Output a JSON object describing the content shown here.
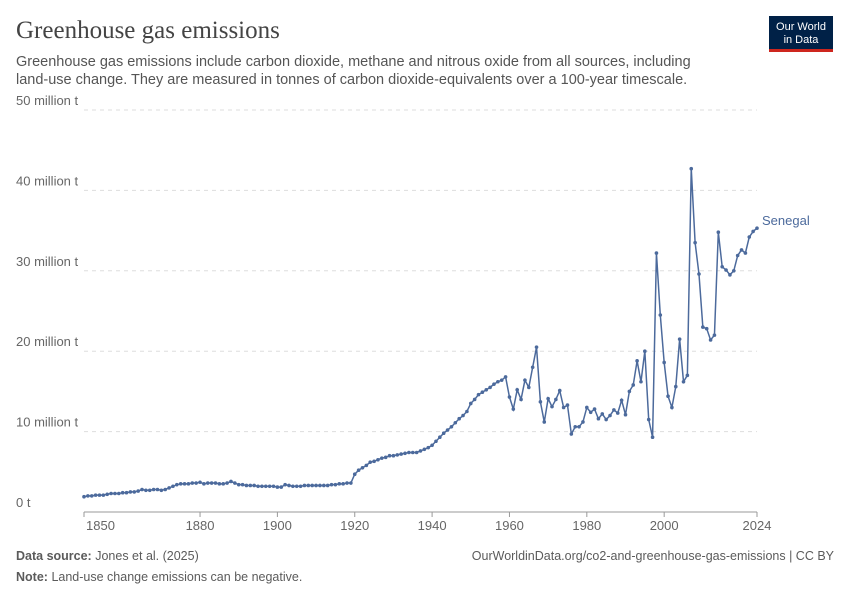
{
  "chart_data": {
    "type": "line",
    "title": "Greenhouse gas emissions",
    "subtitle_lines": [
      "Greenhouse gas emissions include carbon dioxide, methane and nitrous oxide from all sources, including",
      "land-use change. They are measured in tonnes of carbon dioxide-equivalents over a 100-year timescale."
    ],
    "logo": [
      "Our World",
      "in Data"
    ],
    "source_label": "Data source:",
    "source": "Jones et al. (2025)",
    "url": "OurWorldinData.org/co2-and-greenhouse-gas-emissions | CC BY",
    "note_label": "Note:",
    "note": "Land-use change emissions can be negative.",
    "x": [
      1850,
      1851,
      1852,
      1853,
      1854,
      1855,
      1856,
      1857,
      1858,
      1859,
      1860,
      1861,
      1862,
      1863,
      1864,
      1865,
      1866,
      1867,
      1868,
      1869,
      1870,
      1871,
      1872,
      1873,
      1874,
      1875,
      1876,
      1877,
      1878,
      1879,
      1880,
      1881,
      1882,
      1883,
      1884,
      1885,
      1886,
      1887,
      1888,
      1889,
      1890,
      1891,
      1892,
      1893,
      1894,
      1895,
      1896,
      1897,
      1898,
      1899,
      1900,
      1901,
      1902,
      1903,
      1904,
      1905,
      1906,
      1907,
      1908,
      1909,
      1910,
      1911,
      1912,
      1913,
      1914,
      1915,
      1916,
      1917,
      1918,
      1919,
      1920,
      1921,
      1922,
      1923,
      1924,
      1925,
      1926,
      1927,
      1928,
      1929,
      1930,
      1931,
      1932,
      1933,
      1934,
      1935,
      1936,
      1937,
      1938,
      1939,
      1940,
      1941,
      1942,
      1943,
      1944,
      1945,
      1946,
      1947,
      1948,
      1949,
      1950,
      1951,
      1952,
      1953,
      1954,
      1955,
      1956,
      1957,
      1958,
      1959,
      1960,
      1961,
      1962,
      1963,
      1964,
      1965,
      1966,
      1967,
      1968,
      1969,
      1970,
      1971,
      1972,
      1973,
      1974,
      1975,
      1976,
      1977,
      1978,
      1979,
      1980,
      1981,
      1982,
      1983,
      1984,
      1985,
      1986,
      1987,
      1988,
      1989,
      1990,
      1991,
      1992,
      1993,
      1994,
      1995,
      1996,
      1997,
      1998,
      1999,
      2000,
      2001,
      2002,
      2003,
      2004,
      2005,
      2006,
      2007,
      2008,
      2009,
      2010,
      2011,
      2012,
      2013,
      2014,
      2015,
      2016,
      2017,
      2018,
      2019,
      2020,
      2021,
      2022,
      2023,
      2024
    ],
    "series": [
      {
        "name": "Senegal",
        "color": "#4c6a9c",
        "values": [
          1900000.0,
          2000000.0,
          2000000.0,
          2100000.0,
          2100000.0,
          2100000.0,
          2200000.0,
          2300000.0,
          2300000.0,
          2300000.0,
          2400000.0,
          2400000.0,
          2500000.0,
          2500000.0,
          2600000.0,
          2800000.0,
          2700000.0,
          2700000.0,
          2800000.0,
          2800000.0,
          2700000.0,
          2800000.0,
          3000000.0,
          3200000.0,
          3400000.0,
          3500000.0,
          3500000.0,
          3500000.0,
          3600000.0,
          3600000.0,
          3700000.0,
          3500000.0,
          3600000.0,
          3600000.0,
          3600000.0,
          3500000.0,
          3500000.0,
          3600000.0,
          3800000.0,
          3600000.0,
          3400000.0,
          3400000.0,
          3300000.0,
          3300000.0,
          3300000.0,
          3200000.0,
          3200000.0,
          3200000.0,
          3200000.0,
          3200000.0,
          3100000.0,
          3100000.0,
          3400000.0,
          3300000.0,
          3200000.0,
          3200000.0,
          3200000.0,
          3300000.0,
          3300000.0,
          3300000.0,
          3300000.0,
          3300000.0,
          3300000.0,
          3300000.0,
          3400000.0,
          3400000.0,
          3500000.0,
          3500000.0,
          3600000.0,
          3600000.0,
          4700000.0,
          5200000.0,
          5500000.0,
          5800000.0,
          6200000.0,
          6300000.0,
          6500000.0,
          6700000.0,
          6800000.0,
          7000000.0,
          7000000.0,
          7100000.0,
          7200000.0,
          7300000.0,
          7400000.0,
          7400000.0,
          7400000.0,
          7600000.0,
          7800000.0,
          8000000.0,
          8300000.0,
          8800000.0,
          9300000.0,
          9800000.0,
          10200000.0,
          10600000.0,
          11100000.0,
          11600000.0,
          12000000.0,
          12500000.0,
          13500000.0,
          14000000.0,
          14600000.0,
          14900000.0,
          15200000.0,
          15500000.0,
          15900000.0,
          16200000.0,
          16400000.0,
          16800000.0,
          14300000.0,
          12800000.0,
          15200000.0,
          14000000.0,
          16400000.0,
          15500000.0,
          18000000.0,
          20500000.0,
          13700000.0,
          11200000.0,
          14100000.0,
          13100000.0,
          14000000.0,
          15100000.0,
          13000000.0,
          13300000.0,
          9700000.0,
          10600000.0,
          10600000.0,
          11200000.0,
          13000000.0,
          12400000.0,
          12800000.0,
          11600000.0,
          12200000.0,
          11500000.0,
          12000000.0,
          12700000.0,
          12300000.0,
          13900000.0,
          12100000.0,
          15000000.0,
          15800000.0,
          18800000.0,
          16200000.0,
          20000000.0,
          11500000.0,
          9300000.0,
          32200000.0,
          24500000.0,
          18600000.0,
          14400000.0,
          13000000.0,
          15600000.0,
          21500000.0,
          16200000.0,
          17000000.0,
          42700000.0,
          33500000.0,
          29600000.0,
          23000000.0,
          22800000.0,
          21400000.0,
          22000000.0,
          34800000.0,
          30500000.0,
          30100000.0,
          29500000.0,
          30000000.0,
          31900000.0,
          32600000.0,
          32200000.0,
          34200000.0,
          34900000.0,
          35300000.0
        ]
      }
    ],
    "xlim": [
      1850,
      2024
    ],
    "xticks": [
      1850,
      1880,
      1900,
      1920,
      1940,
      1960,
      1980,
      2000,
      2024
    ],
    "ylim": [
      0,
      50000000
    ],
    "yticks": [
      {
        "value": 0,
        "label": "0 t"
      },
      {
        "value": 10000000,
        "label": "10 million t"
      },
      {
        "value": 20000000,
        "label": "20 million t"
      },
      {
        "value": 30000000,
        "label": "30 million t"
      },
      {
        "value": 40000000,
        "label": "40 million t"
      },
      {
        "value": 50000000,
        "label": "50 million t"
      }
    ],
    "grid": true
  }
}
